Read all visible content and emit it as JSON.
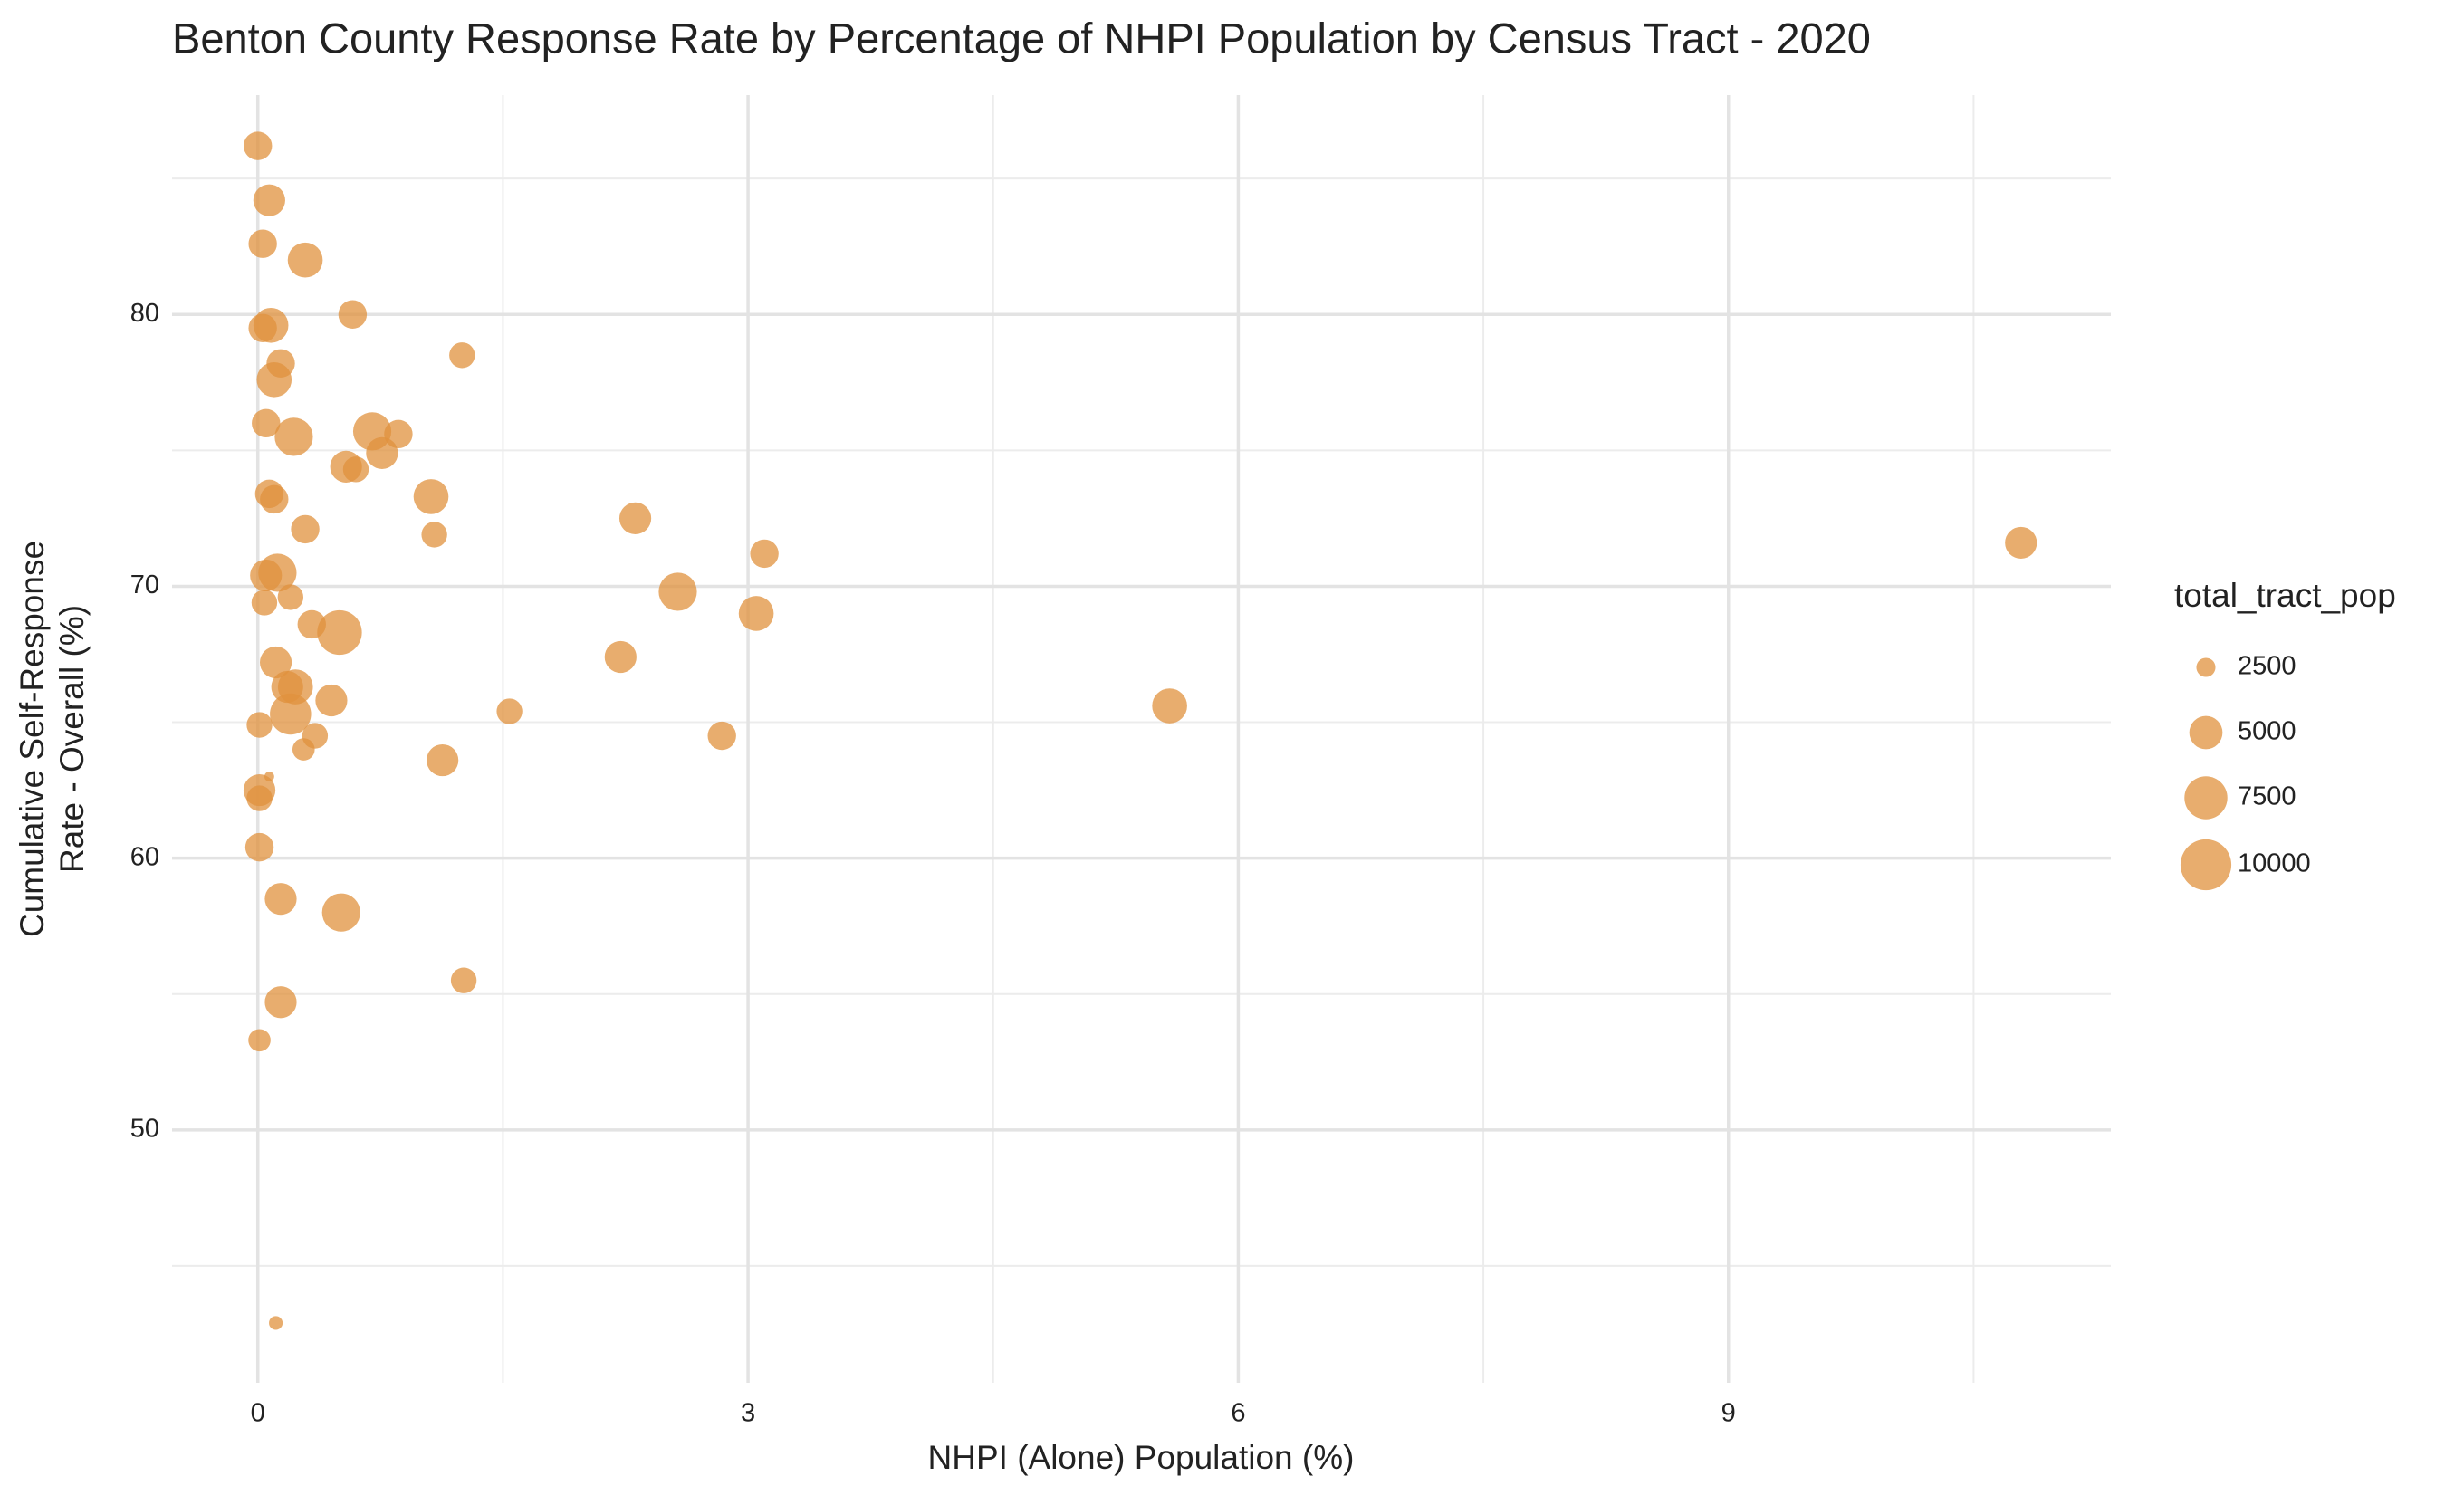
{
  "chart_data": {
    "type": "scatter",
    "title": "Benton County Response Rate by Percentage of NHPI Population by Census Tract - 2020",
    "x_label": "NHPI (Alone) Population (%)",
    "y_label": "Cumulative Self-Response\nRate - Overall (%)",
    "color": "#e0923d",
    "x": [
      0.0,
      0.07,
      0.03,
      0.29,
      0.58,
      0.03,
      0.08,
      1.25,
      0.14,
      0.1,
      0.05,
      0.7,
      0.86,
      0.22,
      0.76,
      0.54,
      0.6,
      1.06,
      0.07,
      0.1,
      2.31,
      0.29,
      1.08,
      3.1,
      10.79,
      0.05,
      0.12,
      2.57,
      0.2,
      0.04,
      3.05,
      0.33,
      0.5,
      0.11,
      2.22,
      0.18,
      0.23,
      0.45,
      0.2,
      1.54,
      5.58,
      0.01,
      0.35,
      2.84,
      0.28,
      1.13,
      0.07,
      0.01,
      0.01,
      0.01,
      0.14,
      0.51,
      1.26,
      0.14,
      0.01,
      0.11
    ],
    "values": [
      86.2,
      84.2,
      82.6,
      82.0,
      80.0,
      79.5,
      79.6,
      78.5,
      78.2,
      77.6,
      76.0,
      75.7,
      75.6,
      75.5,
      74.9,
      74.4,
      74.3,
      73.3,
      73.4,
      73.2,
      72.5,
      72.1,
      71.9,
      71.2,
      71.6,
      70.4,
      70.5,
      69.8,
      69.6,
      69.4,
      69.0,
      68.6,
      68.3,
      67.2,
      67.4,
      66.3,
      66.3,
      65.8,
      65.3,
      65.4,
      65.6,
      64.9,
      64.5,
      64.5,
      64.0,
      63.6,
      63.0,
      62.5,
      62.2,
      60.4,
      58.5,
      58.0,
      55.5,
      54.7,
      53.3,
      42.9
    ],
    "sizes": [
      4000,
      4700,
      4000,
      5400,
      4000,
      4000,
      5400,
      3500,
      4000,
      5400,
      4000,
      6200,
      4000,
      6200,
      4700,
      4700,
      3500,
      5400,
      4000,
      4000,
      4700,
      4000,
      3500,
      4000,
      4700,
      4700,
      6200,
      6200,
      3500,
      3500,
      5400,
      4000,
      8000,
      4700,
      4700,
      4700,
      5400,
      4700,
      7000,
      3500,
      5400,
      3500,
      3500,
      4000,
      2950,
      4700,
      1600,
      4700,
      3500,
      4000,
      4700,
      6200,
      3500,
      4700,
      2950,
      1900
    ],
    "xlim": [
      -0.525,
      11.34
    ],
    "ylim": [
      40.7,
      88.07
    ],
    "xticks": [
      0,
      3,
      6,
      9
    ],
    "yticks": [
      50,
      60,
      70,
      80
    ],
    "xminor": [
      1.5,
      4.5,
      7.5,
      10.5
    ],
    "yminor": [
      45,
      55,
      65,
      75,
      85
    ],
    "grid": true,
    "size_legend": {
      "title": "total_tract_pop",
      "values": [
        2500,
        5000,
        7500,
        10000
      ]
    }
  }
}
